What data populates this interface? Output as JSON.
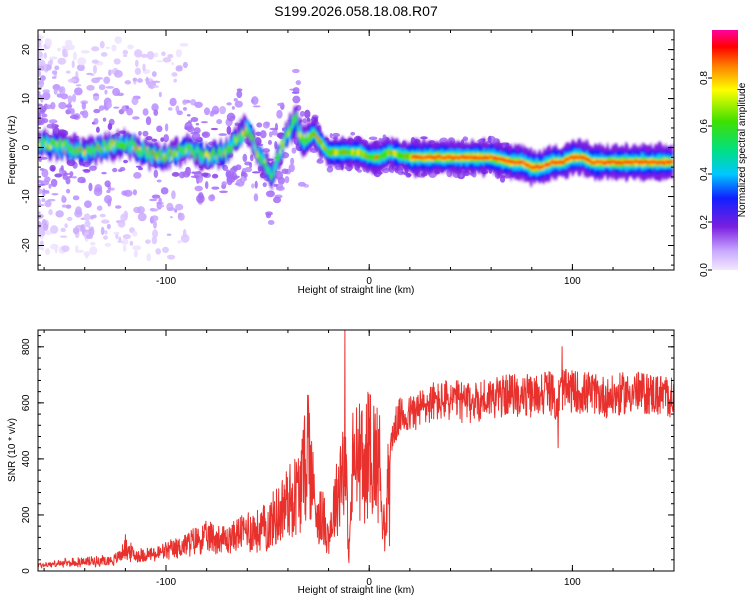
{
  "title": "S199.2026.058.18.08.R07",
  "colors": {
    "snr_line": "#e8302c",
    "axis": "#000000",
    "background": "#ffffff"
  },
  "chart_data": [
    {
      "type": "heatmap",
      "title": "S199.2026.058.18.08.R07",
      "xlabel": "Height of straight line (km)",
      "ylabel": "Frequency (Hz)",
      "xlim": [
        -163,
        150
      ],
      "ylim": [
        -25,
        24
      ],
      "xticks": [
        {
          "value": -100,
          "label": "-100"
        },
        {
          "value": 0,
          "label": "0"
        },
        {
          "value": 100,
          "label": "100"
        }
      ],
      "yticks": [
        {
          "value": -20,
          "label": "-20"
        },
        {
          "value": -10,
          "label": "-10"
        },
        {
          "value": 0,
          "label": "0"
        },
        {
          "value": 10,
          "label": "10"
        },
        {
          "value": 20,
          "label": "20"
        }
      ],
      "colorbar": {
        "label": "Normalized spectral amplitude",
        "range": [
          0,
          1
        ],
        "ticks": [
          {
            "value": 0.0,
            "label": "0.0"
          },
          {
            "value": 0.2,
            "label": "0.2"
          },
          {
            "value": 0.4,
            "label": "0.4"
          },
          {
            "value": 0.6,
            "label": "0.6"
          },
          {
            "value": 0.8,
            "label": "0.8"
          }
        ]
      },
      "ridge": {
        "x": [
          -163,
          -150,
          -140,
          -130,
          -120,
          -110,
          -100,
          -90,
          -80,
          -70,
          -65,
          -60,
          -55,
          -52,
          -48,
          -45,
          -40,
          -36,
          -33,
          -30,
          -27,
          -24,
          -20,
          -15,
          -10,
          -5,
          0,
          5,
          10,
          20,
          30,
          40,
          50,
          60,
          70,
          75,
          80,
          85,
          90,
          95,
          100,
          105,
          110,
          120,
          130,
          140,
          150
        ],
        "y": [
          1,
          0,
          -1,
          0,
          1,
          -1,
          -2,
          0,
          -2,
          -1,
          2,
          4,
          -1,
          -3,
          -6,
          -2,
          3,
          6,
          1,
          2,
          3,
          1,
          -1,
          -1,
          -1,
          -1,
          -2,
          -2,
          -1,
          -2,
          -2,
          -2,
          -2,
          -2,
          -3,
          -3,
          -4,
          -4,
          -3,
          -3,
          -2,
          -2,
          -3,
          -3,
          -3,
          -3,
          -3
        ]
      }
    },
    {
      "type": "line",
      "xlabel": "Height of straight line (km)",
      "ylabel": "SNR (10 * v/v)",
      "xlim": [
        -163,
        150
      ],
      "ylim": [
        0,
        860
      ],
      "xticks": [
        {
          "value": -100,
          "label": "-100"
        },
        {
          "value": 0,
          "label": "0"
        },
        {
          "value": 100,
          "label": "100"
        }
      ],
      "yticks": [
        {
          "value": 0,
          "label": "0"
        },
        {
          "value": 200,
          "label": "200"
        },
        {
          "value": 400,
          "label": "400"
        },
        {
          "value": 600,
          "label": "600"
        },
        {
          "value": 800,
          "label": "800"
        }
      ],
      "series": [
        {
          "name": "SNR",
          "x": [
            -163,
            -155,
            -145,
            -135,
            -125,
            -120,
            -115,
            -105,
            -95,
            -85,
            -80,
            -75,
            -70,
            -65,
            -60,
            -55,
            -50,
            -45,
            -40,
            -35,
            -32,
            -30,
            -28,
            -25,
            -22,
            -20,
            -18,
            -16,
            -14,
            -12,
            -10,
            -8,
            -5,
            -2,
            0,
            3,
            5,
            7,
            8,
            10,
            12,
            15,
            20,
            25,
            30,
            40,
            50,
            60,
            70,
            80,
            88,
            92,
            95,
            100,
            110,
            120,
            130,
            140,
            150
          ],
          "y": [
            20,
            25,
            30,
            35,
            40,
            80,
            55,
            60,
            80,
            110,
            120,
            120,
            110,
            130,
            150,
            140,
            160,
            200,
            250,
            280,
            350,
            480,
            300,
            200,
            180,
            120,
            200,
            260,
            350,
            420,
            60,
            380,
            400,
            360,
            450,
            400,
            380,
            200,
            100,
            420,
            500,
            550,
            560,
            580,
            600,
            610,
            600,
            620,
            630,
            620,
            650,
            600,
            650,
            640,
            630,
            620,
            640,
            630,
            620
          ],
          "spikes": [
            {
              "x": -120,
              "y": 130
            },
            {
              "x": -12,
              "y": 860
            },
            {
              "x": -10,
              "y": 30
            },
            {
              "x": 10,
              "y": 90
            },
            {
              "x": 95,
              "y": 800
            },
            {
              "x": 93,
              "y": 440
            }
          ]
        }
      ]
    }
  ]
}
